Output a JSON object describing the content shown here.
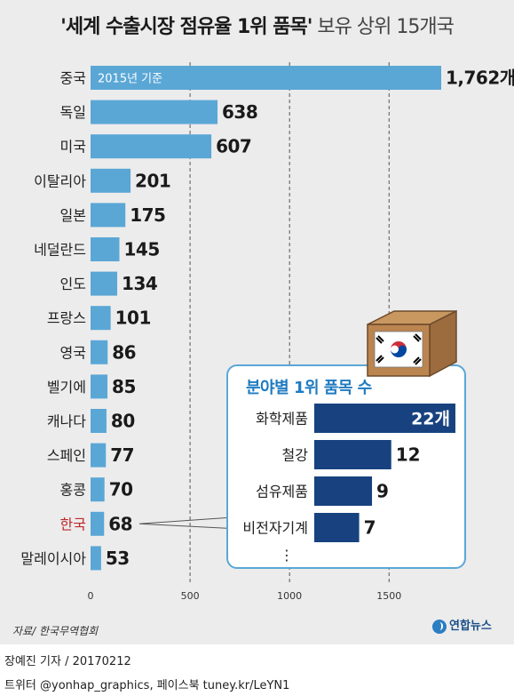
{
  "title": {
    "main": "'세계 수출시장 점유율 1위 품목'",
    "sub": " 보유 상위 15개국"
  },
  "chart_data": [
    {
      "type": "bar",
      "orientation": "horizontal",
      "categories": [
        "중국",
        "독일",
        "미국",
        "이탈리아",
        "일본",
        "네덜란드",
        "인도",
        "프랑스",
        "영국",
        "벨기에",
        "캐나다",
        "스페인",
        "홍콩",
        "한국",
        "말레이시아"
      ],
      "values": [
        1762,
        638,
        607,
        201,
        175,
        145,
        134,
        101,
        86,
        85,
        80,
        77,
        70,
        68,
        53
      ],
      "value_labels": [
        "1,762개",
        "638",
        "607",
        "201",
        "175",
        "145",
        "134",
        "101",
        "86",
        "85",
        "80",
        "77",
        "70",
        "68",
        "53"
      ],
      "highlight_category": "한국",
      "annotation": "2015년 기준",
      "xlim": [
        0,
        1762
      ],
      "xticks": [
        0,
        500,
        1000,
        1500
      ],
      "tick_labels": [
        "0",
        "500",
        "1000",
        "1500"
      ],
      "grid": "dashed vertical",
      "colors": {
        "bar": "#5aa7d6",
        "highlight_label": "#c0282b"
      }
    },
    {
      "type": "bar",
      "orientation": "horizontal",
      "title": "분야별 1위 품목 수",
      "categories": [
        "화학제품",
        "철강",
        "섬유제품",
        "비전자기계"
      ],
      "values": [
        22,
        12,
        9,
        7
      ],
      "value_labels": [
        "22개",
        "12",
        "9",
        "7"
      ],
      "continuation": "⋮",
      "colors": {
        "bar": "#17427f",
        "title": "#1f7bc0"
      }
    }
  ],
  "source": "자료/ 한국무역협회",
  "logo": {
    "text": "연합뉴스",
    "icon": "yonhap-logo-icon"
  },
  "byline": "장예진 기자 / 20170212",
  "social": "트위터 @yonhap_graphics, 페이스북 tuney.kr/LeYN1",
  "icons": {
    "box": "korea-flag-box-icon"
  }
}
